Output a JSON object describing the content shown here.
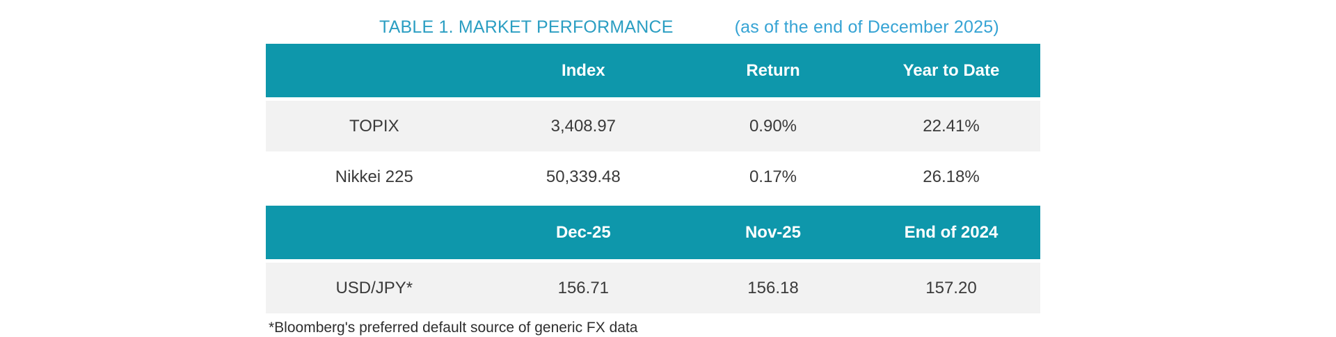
{
  "title": {
    "main": "TABLE 1. MARKET PERFORMANCE",
    "subtitle": "(as of the end of December 2025)"
  },
  "colors": {
    "header_bg": "#0e97ab",
    "row_alt_bg": "#f2f2f2",
    "title_main": "#2b9ec2",
    "title_subtitle": "#35a3d4",
    "body_text": "#3a3a3a"
  },
  "market_table": {
    "headers": [
      "",
      "Index",
      "Return",
      "Year to Date"
    ],
    "rows": [
      {
        "label": "TOPIX",
        "index": "3,408.97",
        "return": "0.90%",
        "ytd": "22.41%"
      },
      {
        "label": "Nikkei 225",
        "index": "50,339.48",
        "return": "0.17%",
        "ytd": "26.18%"
      }
    ]
  },
  "fx_table": {
    "headers": [
      "",
      "Dec-25",
      "Nov-25",
      "End of 2024"
    ],
    "rows": [
      {
        "label": "USD/JPY*",
        "dec25": "156.71",
        "nov25": "156.18",
        "end_2024": "157.20"
      }
    ]
  },
  "footnote": "*Bloomberg's preferred default source of generic FX data"
}
